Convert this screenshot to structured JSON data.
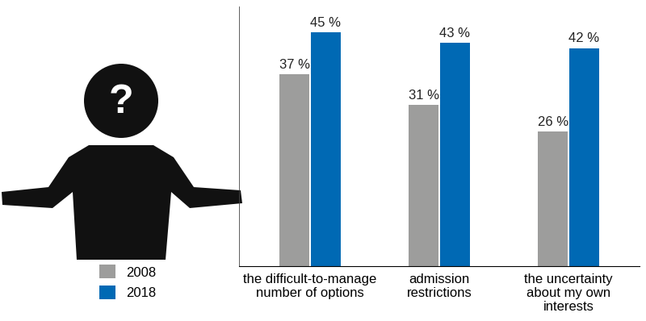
{
  "chart_data": {
    "type": "bar",
    "categories": [
      "the difficult-to-manage\nnumber of options",
      "admission\nrestrictions",
      "the uncertainty\nabout my own\ninterests"
    ],
    "series": [
      {
        "name": "2008",
        "color": "#9d9d9c",
        "values": [
          37,
          31,
          26
        ],
        "value_labels": [
          "37 %",
          "31 %",
          "26 %"
        ]
      },
      {
        "name": "2018",
        "color": "#0069b4",
        "values": [
          45,
          43,
          42
        ],
        "value_labels": [
          "45 %",
          "43 %",
          "42 %"
        ]
      }
    ],
    "ylim": [
      0,
      50
    ],
    "yticks": [],
    "data_labels": true,
    "tick_labels": "x",
    "grid": false,
    "legend": "lower left",
    "annotations": [
      "?"
    ]
  }
}
